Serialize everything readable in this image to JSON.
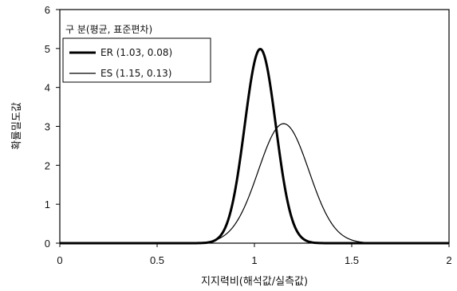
{
  "chart_data": {
    "type": "line",
    "title": "",
    "xlabel": "지지력비(해석값/실측값)",
    "ylabel": "확률밀도값",
    "xlim": [
      0,
      2
    ],
    "ylim": [
      0,
      6
    ],
    "xticks": [
      "0",
      "0.5",
      "1",
      "1.5",
      "2"
    ],
    "yticks": [
      "0",
      "1",
      "2",
      "3",
      "4",
      "5",
      "6"
    ],
    "grid": false,
    "legend": {
      "title": "구 분(평균, 표준편차)",
      "placement": "top-left"
    },
    "series": [
      {
        "name": "ER (1.03, 0.08)",
        "distribution": "normal",
        "mean": 1.03,
        "std": 0.08,
        "line_weight": "thick",
        "color": "#000000"
      },
      {
        "name": "ES (1.15, 0.13)",
        "distribution": "normal",
        "mean": 1.15,
        "std": 0.13,
        "line_weight": "thin",
        "color": "#000000"
      }
    ]
  }
}
